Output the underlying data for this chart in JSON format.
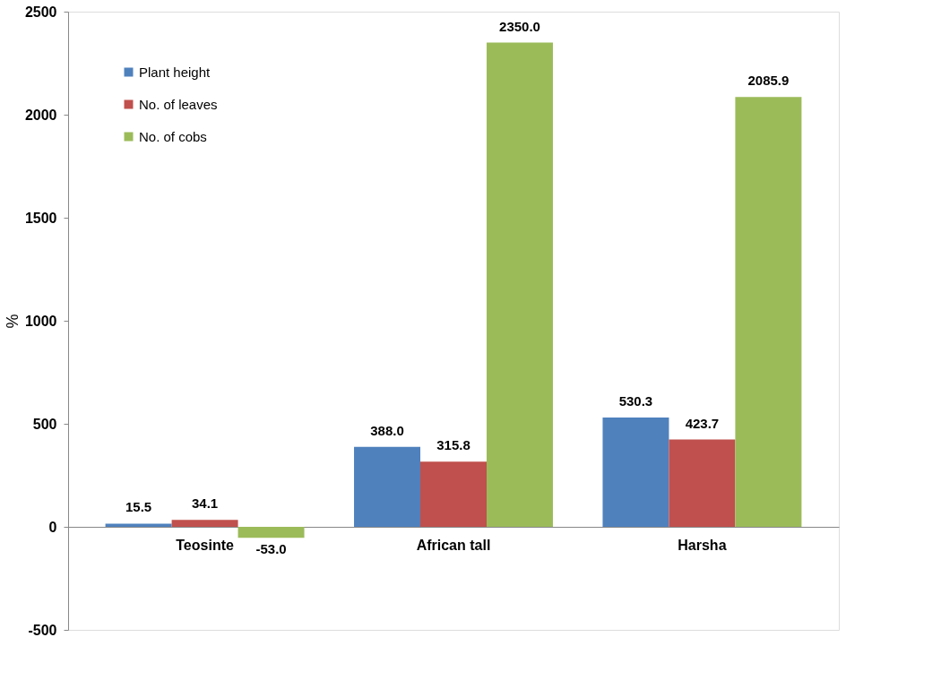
{
  "chart_data": {
    "type": "bar",
    "ylabel": "%",
    "categories": [
      "Teosinte",
      "African tall",
      "Harsha"
    ],
    "series": [
      {
        "name": "Plant height",
        "color": "#4f81bd",
        "values": [
          15.5,
          388.0,
          530.3
        ],
        "value_labels": [
          "15.5",
          "388.0",
          "530.3"
        ]
      },
      {
        "name": "No. of leaves",
        "color": "#c0504d",
        "values": [
          34.1,
          315.8,
          423.7
        ],
        "value_labels": [
          "34.1",
          "315.8",
          "423.7"
        ]
      },
      {
        "name": "No. of cobs",
        "color": "#9bbb59",
        "values": [
          -53.0,
          2350.0,
          2085.9
        ],
        "value_labels": [
          "-53.0",
          "2350.0",
          "2085.9"
        ]
      }
    ],
    "ylim": [
      -500,
      2500
    ],
    "yticks": [
      -500,
      0,
      500,
      1000,
      1500,
      2000,
      2500
    ],
    "grid": false,
    "legend": "top left"
  }
}
